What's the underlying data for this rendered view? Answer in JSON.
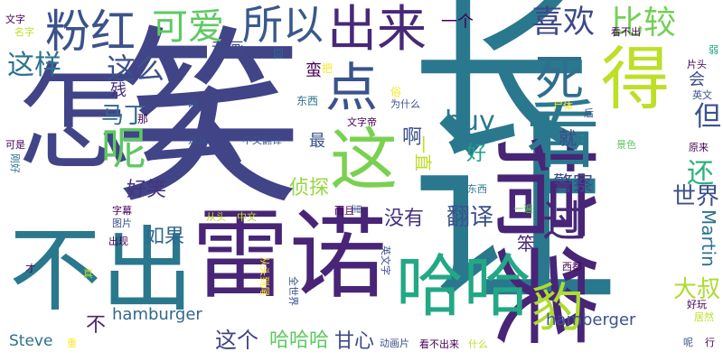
{
  "words": [
    {
      "text": "笑",
      "color": "#414487"
    },
    {
      "text": "让",
      "color": "#2a788e"
    },
    {
      "text": "怎么",
      "color": "#414487"
    },
    {
      "text": "雷诺",
      "color": "#482576"
    },
    {
      "text": "搞笑",
      "color": "#482576"
    },
    {
      "text": "长",
      "color": "#2a788e"
    },
    {
      "text": "不出",
      "color": "#2a788e"
    },
    {
      "text": "这",
      "color": "#7ad151"
    },
    {
      "text": "看",
      "color": "#2a788e"
    },
    {
      "text": "得",
      "color": "#bddf26"
    },
    {
      "text": "点",
      "color": "#3b528b"
    },
    {
      "text": "死",
      "color": "#2e6e8e"
    },
    {
      "text": "哈哈",
      "color": "#22a884"
    },
    {
      "text": "粉红",
      "color": "#3b528b"
    },
    {
      "text": "出来",
      "color": "#482878"
    },
    {
      "text": "所以",
      "color": "#38598c"
    },
    {
      "text": "可爱",
      "color": "#5ec962"
    },
    {
      "text": "喜欢",
      "color": "#3e4989"
    },
    {
      "text": "比较",
      "color": "#73d056"
    },
    {
      "text": "这么",
      "color": "#3b528b"
    },
    {
      "text": "这样",
      "color": "#2c728e"
    },
    {
      "text": "呢",
      "color": "#5ec962"
    },
    {
      "text": "马丁",
      "color": "#31688e"
    },
    {
      "text": "buy",
      "color": "#2a788e"
    },
    {
      "text": "过",
      "color": "#482878"
    },
    {
      "text": "豹",
      "color": "#addc30"
    },
    {
      "text": "但",
      "color": "#3b528b"
    },
    {
      "text": "还",
      "color": "#2db27d"
    },
    {
      "text": "世界",
      "color": "#3b528b"
    },
    {
      "text": "Martin",
      "color": "#2c728e"
    },
    {
      "text": "大叔",
      "color": "#addc30"
    },
    {
      "text": "翻译",
      "color": "#3b528b"
    },
    {
      "text": "好笑",
      "color": "#46337e"
    },
    {
      "text": "如果",
      "color": "#31688e"
    },
    {
      "text": "没有",
      "color": "#46337e"
    },
    {
      "text": "侦探",
      "color": "#95d840"
    },
    {
      "text": "警察",
      "color": "#3e4989"
    },
    {
      "text": "hamburger",
      "color": "#31688e"
    },
    {
      "text": "hamberger",
      "color": "#3b528b"
    },
    {
      "text": "这个",
      "color": "#414487"
    },
    {
      "text": "哈哈哈",
      "color": "#5ec962"
    },
    {
      "text": "甘心",
      "color": "#3e4989"
    },
    {
      "text": "Steve",
      "color": "#2c728e"
    },
    {
      "text": "一直",
      "color": "#bddf26"
    },
    {
      "text": "啊",
      "color": "#3b528b"
    },
    {
      "text": "好",
      "color": "#1f9e89"
    },
    {
      "text": "就",
      "color": "#3e4989"
    },
    {
      "text": "一个",
      "color": "#440154"
    },
    {
      "text": "动画",
      "color": "#3e4989"
    },
    {
      "text": "蛮",
      "color": "#440154"
    },
    {
      "text": "残",
      "color": "#472d7b"
    },
    {
      "text": "最",
      "color": "#3b528b"
    },
    {
      "text": "不",
      "color": "#482475"
    },
    {
      "text": "笨",
      "color": "#482878"
    },
    {
      "text": "会",
      "color": "#3e4989"
    },
    {
      "text": "文字",
      "color": "#440154"
    },
    {
      "text": "名字",
      "color": "#bddf26"
    },
    {
      "text": "弱",
      "color": "#20a386"
    },
    {
      "text": "囧",
      "color": "#31688e"
    },
    {
      "text": "看不出",
      "color": "#440154"
    },
    {
      "text": "片头",
      "color": "#440154"
    },
    {
      "text": "英文",
      "color": "#3b528b"
    },
    {
      "text": "把",
      "color": "#fde725"
    },
    {
      "text": "俗",
      "color": "#fde725"
    },
    {
      "text": "为什么",
      "color": "#3b528b"
    },
    {
      "text": "东西",
      "color": "#2c728e"
    },
    {
      "text": "嗐",
      "color": "#3b528b"
    },
    {
      "text": "那",
      "color": "#440154"
    },
    {
      "text": "文字帝",
      "color": "#440154"
    },
    {
      "text": "尸体",
      "color": "#fde725"
    },
    {
      "text": "后",
      "color": "#3b528b"
    },
    {
      "text": "景色",
      "color": "#5ec962"
    },
    {
      "text": "原来",
      "color": "#440154"
    },
    {
      "text": "是从",
      "color": "#3b528b"
    },
    {
      "text": "中文翻译",
      "color": "#3b528b"
    },
    {
      "text": "可是",
      "color": "#440154"
    },
    {
      "text": "小东西",
      "color": "#2a788e"
    },
    {
      "text": "而且",
      "color": "#440154"
    },
    {
      "text": "刚好",
      "color": "#2c728e"
    },
    {
      "text": "字幕",
      "color": "#440154"
    },
    {
      "text": "图片",
      "color": "#3b528b"
    },
    {
      "text": "从头",
      "color": "#bddf26"
    },
    {
      "text": "中文",
      "color": "#bddf26"
    },
    {
      "text": "出现",
      "color": "#440154"
    },
    {
      "text": "里",
      "color": "#3b528b"
    },
    {
      "text": "一遍",
      "color": "#5ec962"
    },
    {
      "text": "英文字",
      "color": "#3b528b"
    },
    {
      "text": "才",
      "color": "#440154"
    },
    {
      "text": "真",
      "color": "#bddf26"
    },
    {
      "text": "从头到尾",
      "color": "#fde725"
    },
    {
      "text": "全世界",
      "color": "#3b528b"
    },
    {
      "text": "西都",
      "color": "#440154"
    },
    {
      "text": "好玩",
      "color": "#440154"
    },
    {
      "text": "居然",
      "color": "#bddf26"
    },
    {
      "text": "重",
      "color": "#fde725"
    },
    {
      "text": "动画片",
      "color": "#3b528b"
    },
    {
      "text": "看不出来",
      "color": "#440154"
    },
    {
      "text": "什么",
      "color": "#bddf26"
    },
    {
      "text": "呢",
      "color": "#3b528b"
    },
    {
      "text": "行",
      "color": "#440154"
    }
  ]
}
